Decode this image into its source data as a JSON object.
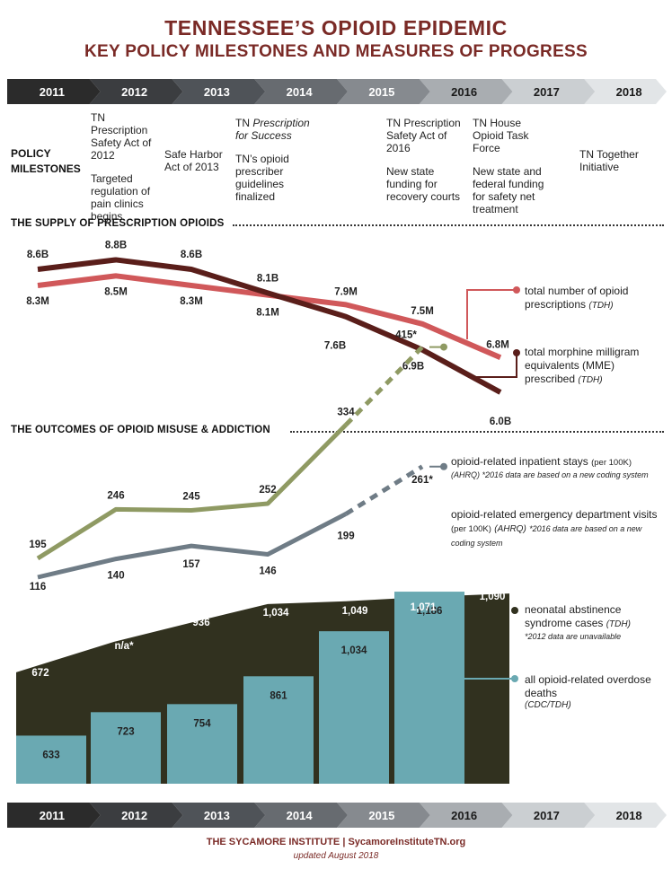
{
  "title": "TENNESSEE’S OPIOID EPIDEMIC",
  "subtitle": "KEY POLICY MILESTONES AND MEASURES OF PROGRESS",
  "years": [
    "2011",
    "2012",
    "2013",
    "2014",
    "2015",
    "2016",
    "2017",
    "2018"
  ],
  "timeline_colors": [
    "#2b2b2b",
    "#3b3d40",
    "#4f5358",
    "#676b70",
    "#868a8f",
    "#a9adb1",
    "#cbcfd2",
    "#e2e5e7"
  ],
  "policy": {
    "label_line1": "POLICY",
    "label_line2": "MILESTONES",
    "milestones": [
      {
        "year": "2012",
        "items": [
          "TN Prescription Safety Act of 2012",
          "Targeted regulation of pain clinics begins"
        ]
      },
      {
        "year": "2013",
        "items": [
          "Safe Harbor Act of 2013"
        ]
      },
      {
        "year": "2014",
        "items_rich": [
          {
            "plain": "TN ",
            "italic": "Prescription for Success"
          }
        ],
        "items": [
          "TN’s opioid prescriber guidelines finalized"
        ]
      },
      {
        "year": "2016",
        "items": [
          "TN Prescription Safety Act of 2016",
          "New state funding for recovery courts"
        ]
      },
      {
        "year": "2017",
        "items": [
          "TN House Opioid Task Force",
          "New state and federal funding for safety net treatment"
        ]
      },
      {
        "year": "2018",
        "items": [
          "TN Together Initiative"
        ]
      }
    ]
  },
  "section1_title": "THE SUPPLY OF PRESCRIPTION OPIOIDS",
  "section2_title": "THE OUTCOMES OF OPIOID MISUSE & ADDICTION",
  "legends": {
    "prescriptions": {
      "text": "total number of opioid prescriptions",
      "source": "(TDH)"
    },
    "mme": {
      "text": "total morphine milligram equivalents (MME) prescribed",
      "source": "(TDH)"
    },
    "inpatient": {
      "text": "opioid-related inpatient stays",
      "unit": "(per 100K)",
      "source": "(AHRQ)",
      "note": "*2016 data are based on a new coding system"
    },
    "ed": {
      "text": "opioid-related emergency department visits",
      "unit": "(per 100K)",
      "source": "(AHRQ)",
      "note": "*2016 data are based on a new coding system"
    },
    "nas": {
      "text": "neonatal abstinence syndrome cases",
      "source": "(TDH)",
      "note": "*2012 data are unavailable"
    },
    "deaths": {
      "text": "all opioid-related overdose deaths",
      "source": "(CDC/TDH)"
    }
  },
  "colors": {
    "title": "#7a2a26",
    "mme": "#5a1e1a",
    "prescriptions": "#d0585a",
    "inpatient": "#8f9a63",
    "ed": "#6f7c86",
    "nas": "#31311f",
    "deaths": "#6aa9b2"
  },
  "chart_data": [
    {
      "type": "line",
      "x": [
        "2011",
        "2012",
        "2013",
        "2014",
        "2015",
        "2016",
        "2017"
      ],
      "series": [
        {
          "name": "total morphine milligram equivalents (MME) prescribed",
          "values": [
            8.6,
            8.8,
            8.6,
            8.1,
            7.6,
            6.9,
            6.0
          ],
          "labels": [
            "8.6B",
            "8.8B",
            "8.6B",
            "8.1B",
            "7.6B",
            "6.9B",
            "6.0B"
          ]
        },
        {
          "name": "total number of opioid prescriptions",
          "values": [
            8.3,
            8.5,
            8.3,
            8.1,
            7.9,
            7.5,
            6.8
          ],
          "labels": [
            "8.3M",
            "8.5M",
            "8.3M",
            "8.1M",
            "7.9M",
            "7.5M",
            "6.8M"
          ]
        }
      ]
    },
    {
      "type": "line",
      "x": [
        "2011",
        "2012",
        "2013",
        "2014",
        "2015",
        "2016"
      ],
      "series": [
        {
          "name": "opioid-related inpatient stays (per 100K)",
          "values": [
            195,
            246,
            245,
            252,
            334,
            415
          ],
          "labels": [
            "195",
            "246",
            "245",
            "252",
            "334",
            "415*"
          ]
        },
        {
          "name": "opioid-related emergency department visits (per 100K)",
          "values": [
            116,
            140,
            157,
            146,
            199,
            261
          ],
          "labels": [
            "116",
            "140",
            "157",
            "146",
            "199",
            "261*"
          ]
        }
      ]
    },
    {
      "type": "bar",
      "categories": [
        "2011",
        "2012",
        "2013",
        "2014",
        "2015",
        "2016",
        "2017"
      ],
      "series": [
        {
          "name": "all opioid-related overdose deaths",
          "values": [
            633,
            723,
            754,
            861,
            1034,
            1186,
            null
          ]
        },
        {
          "name": "neonatal abstinence syndrome cases",
          "values": [
            672,
            null,
            936,
            1034,
            1049,
            1071,
            1090
          ],
          "labels": [
            "672",
            "n/a*",
            "936",
            "1,034",
            "1,049",
            "1,071",
            "1,090"
          ]
        }
      ],
      "death_labels": [
        "633",
        "723",
        "754",
        "861",
        "1,034",
        "1,186"
      ]
    }
  ],
  "footer": {
    "org": "THE SYCAMORE INSTITUTE",
    "sep": "|",
    "site": "SycamoreInstituteTN.org",
    "updated": "updated August 2018"
  }
}
